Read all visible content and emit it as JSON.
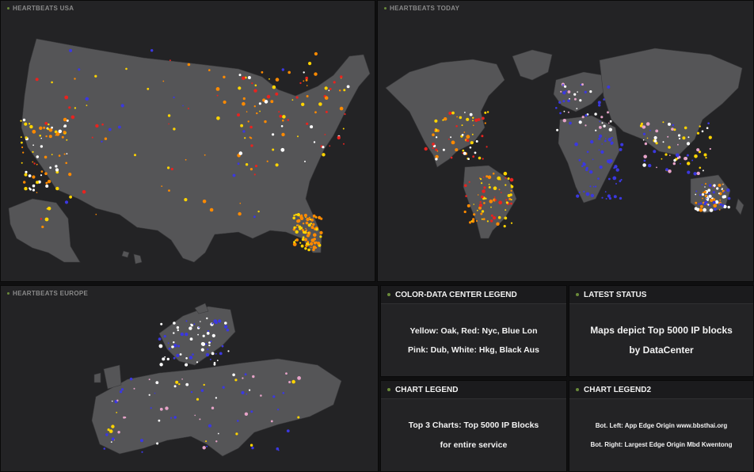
{
  "maps": {
    "usa": {
      "title": "HEARTBEATS USA"
    },
    "today": {
      "title": "HEARTBEATS TODAY"
    },
    "europe": {
      "title": "HEARTBEATS EUROPE"
    }
  },
  "legend_color": {
    "title": "COLOR-DATA CENTER LEGEND",
    "line1": "Yellow: Oak, Red: Nyc, Blue Lon",
    "line2": "Pink: Dub, White: Hkg, Black Aus"
  },
  "latest_status": {
    "title": "LATEST STATUS",
    "line1": "Maps depict Top 5000 IP blocks",
    "line2": "by DataCenter"
  },
  "chart_legend": {
    "title": "CHART LEGEND",
    "line1": "Top 3 Charts: Top 5000 IP Blocks",
    "line2": "for entire service"
  },
  "chart_legend2": {
    "title": "CHART LEGEND2",
    "line1": "Bot. Left: App Edge Origin www.bbsthai.org",
    "line2": "Bot. Right: Largest Edge Origin Mbd Kwentong"
  },
  "colors": {
    "land": "#555557",
    "yellow": "#ffd400",
    "orange": "#ff8a00",
    "red": "#e8231f",
    "blue": "#3b38e0",
    "pink": "#e6a3c8",
    "white": "#ffffff"
  }
}
